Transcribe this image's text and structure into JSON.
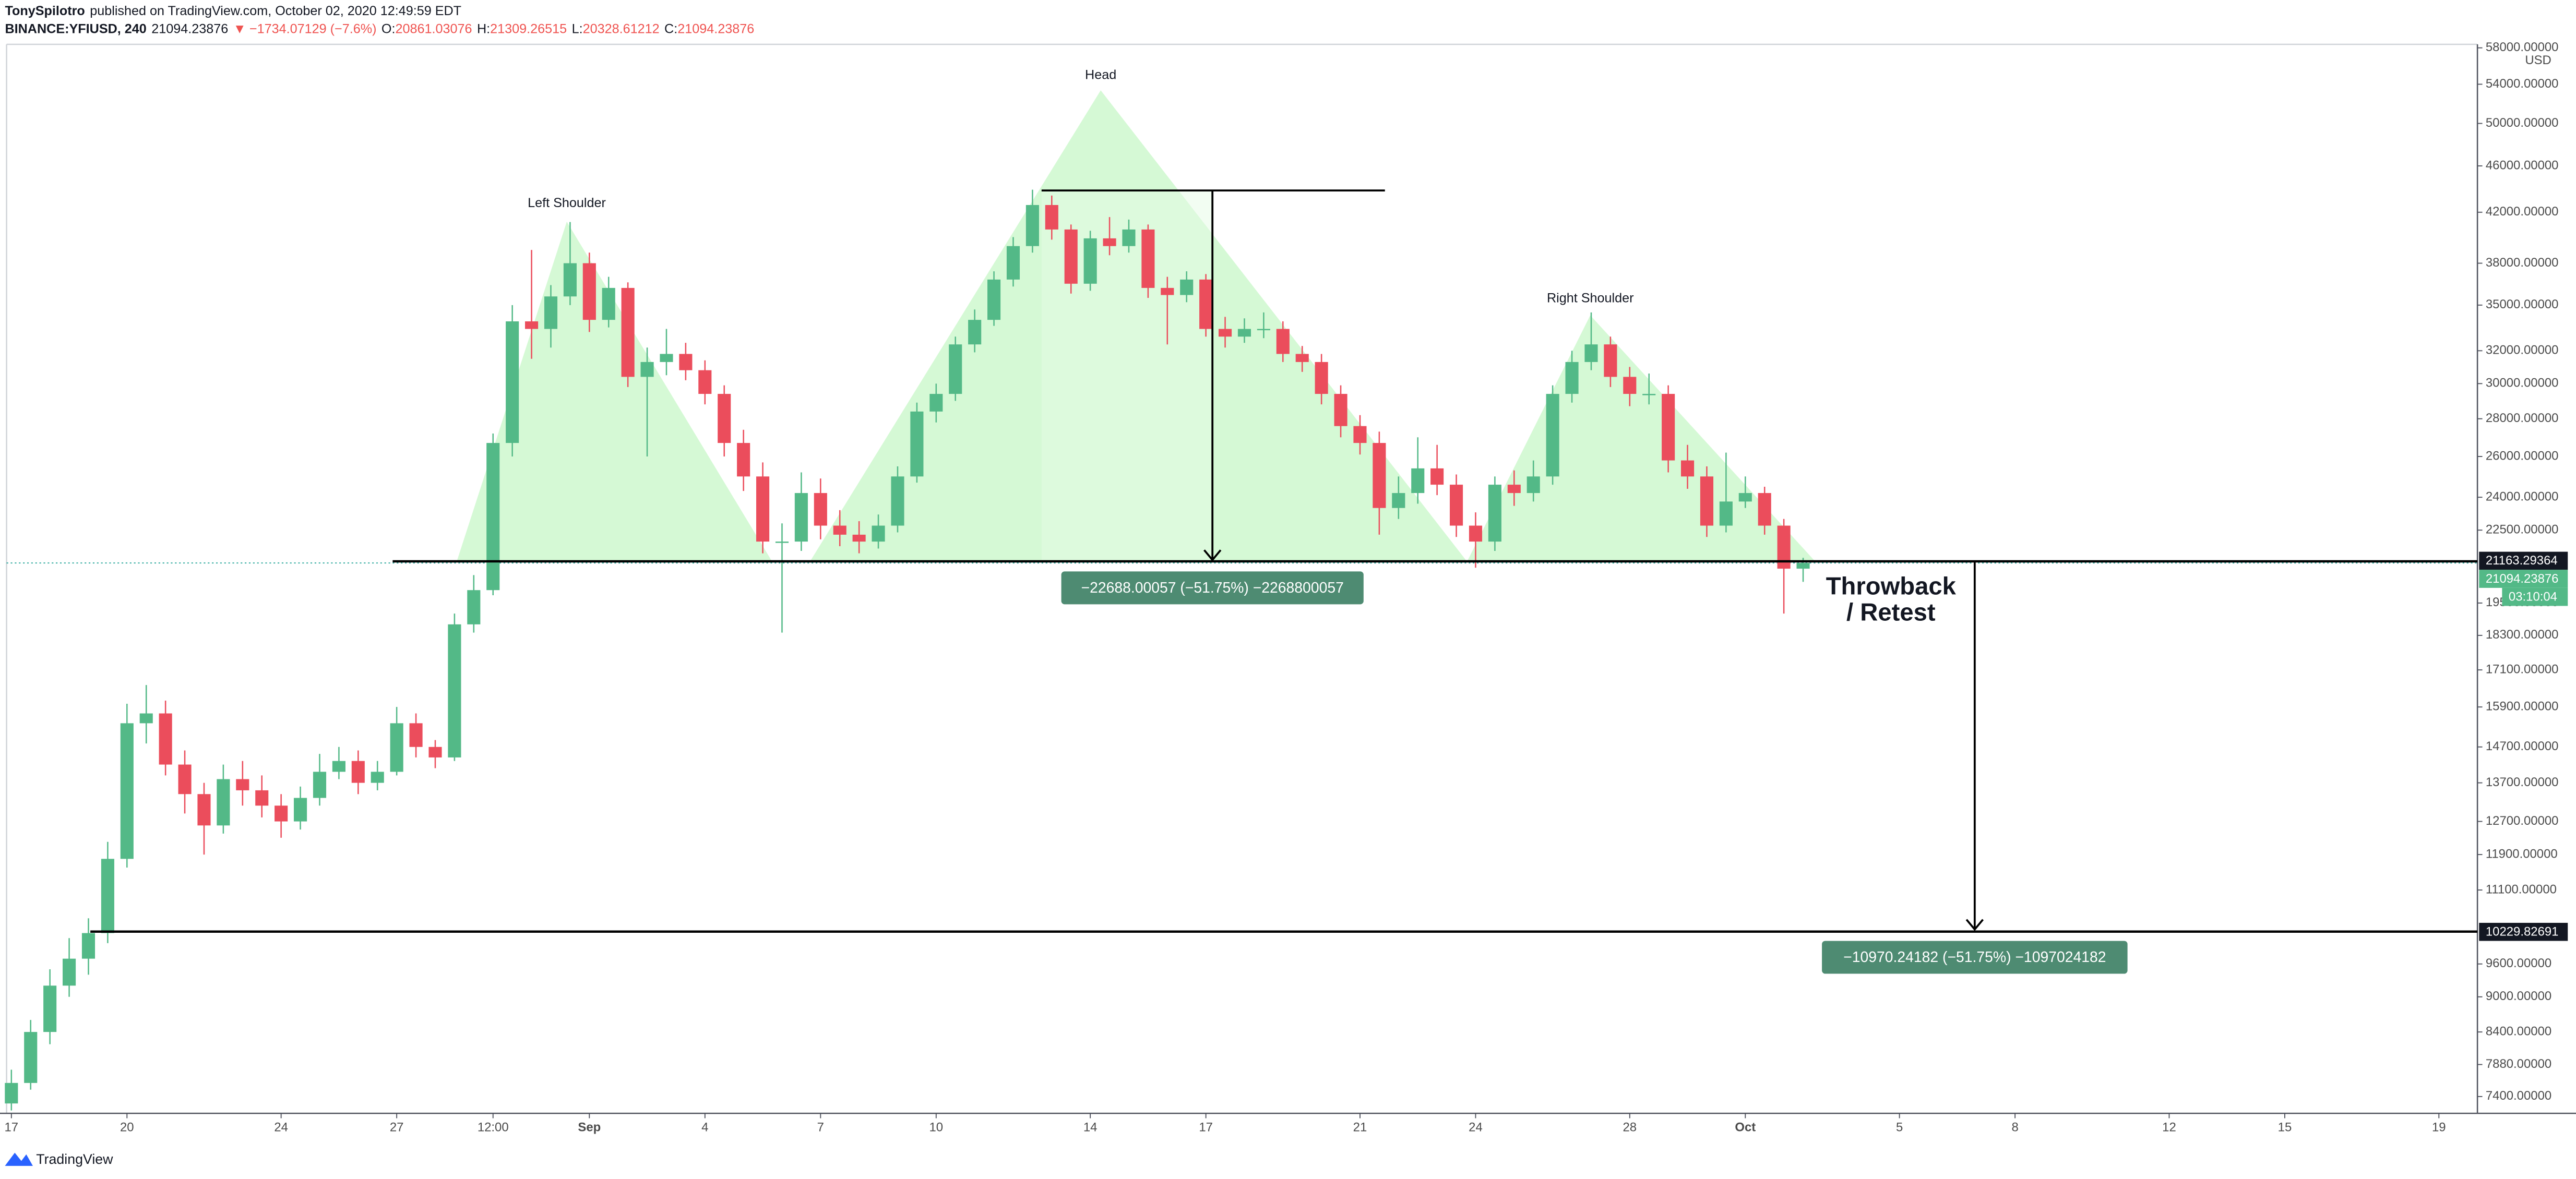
{
  "header": {
    "author": "TonySpilotro",
    "published": "published on TradingView.com, October 02, 2020 12:49:59 EDT",
    "symbol": "BINANCE:YFIUSD, 240",
    "arrow": "▼",
    "change": "−1734.07129 (−7.6%)",
    "o": "O:",
    "h": "H:",
    "l": "L:",
    "c": "C:"
  },
  "chart_data": {
    "type": "candlestick",
    "log_scale": true,
    "grid": false,
    "up_color": "#53b987",
    "down_color": "#eb4d5c",
    "y_axis_label": "USD",
    "x": [
      "2020-08-17 00:00",
      "2020-08-17 12:00",
      "2020-08-18 00:00",
      "2020-08-18 12:00",
      "2020-08-19 00:00",
      "2020-08-19 12:00",
      "2020-08-20 00:00",
      "2020-08-20 12:00",
      "2020-08-21 00:00",
      "2020-08-21 12:00",
      "2020-08-22 00:00",
      "2020-08-22 12:00",
      "2020-08-23 00:00",
      "2020-08-23 12:00",
      "2020-08-24 00:00",
      "2020-08-24 12:00",
      "2020-08-25 00:00",
      "2020-08-25 12:00",
      "2020-08-26 00:00",
      "2020-08-26 12:00",
      "2020-08-27 00:00",
      "2020-08-27 12:00",
      "2020-08-28 00:00",
      "2020-08-28 12:00",
      "2020-08-29 00:00",
      "2020-08-29 12:00",
      "2020-08-30 00:00",
      "2020-08-30 12:00",
      "2020-08-31 00:00",
      "2020-08-31 12:00",
      "2020-09-01 00:00",
      "2020-09-01 12:00",
      "2020-09-02 00:00",
      "2020-09-02 12:00",
      "2020-09-03 00:00",
      "2020-09-03 12:00",
      "2020-09-04 00:00",
      "2020-09-04 12:00",
      "2020-09-05 00:00",
      "2020-09-05 12:00",
      "2020-09-06 00:00",
      "2020-09-06 12:00",
      "2020-09-07 00:00",
      "2020-09-07 12:00",
      "2020-09-08 00:00",
      "2020-09-08 12:00",
      "2020-09-09 00:00",
      "2020-09-09 12:00",
      "2020-09-10 00:00",
      "2020-09-10 12:00",
      "2020-09-11 00:00",
      "2020-09-11 12:00",
      "2020-09-12 00:00",
      "2020-09-12 12:00",
      "2020-09-13 00:00",
      "2020-09-13 12:00",
      "2020-09-14 00:00",
      "2020-09-14 12:00",
      "2020-09-15 00:00",
      "2020-09-15 12:00",
      "2020-09-16 00:00",
      "2020-09-16 12:00",
      "2020-09-17 00:00",
      "2020-09-17 12:00",
      "2020-09-18 00:00",
      "2020-09-18 12:00",
      "2020-09-19 00:00",
      "2020-09-19 12:00",
      "2020-09-20 00:00",
      "2020-09-20 12:00",
      "2020-09-21 00:00",
      "2020-09-21 12:00",
      "2020-09-22 00:00",
      "2020-09-22 12:00",
      "2020-09-23 00:00",
      "2020-09-23 12:00",
      "2020-09-24 00:00",
      "2020-09-24 12:00",
      "2020-09-25 00:00",
      "2020-09-25 12:00",
      "2020-09-26 00:00",
      "2020-09-26 12:00",
      "2020-09-27 00:00",
      "2020-09-27 12:00",
      "2020-09-28 00:00",
      "2020-09-28 12:00",
      "2020-09-29 00:00",
      "2020-09-29 12:00",
      "2020-09-30 00:00",
      "2020-09-30 12:00",
      "2020-10-01 00:00",
      "2020-10-01 12:00",
      "2020-10-02 00:00",
      "2020-10-02 12:00"
    ],
    "open": [
      7300,
      7600,
      8400,
      9200,
      9700,
      10200,
      11800,
      15400,
      15700,
      14200,
      13400,
      12600,
      13800,
      13500,
      13100,
      12700,
      13300,
      14000,
      14300,
      13700,
      14000,
      15400,
      14700,
      14400,
      18700,
      20000,
      26700,
      33900,
      33400,
      35600,
      38000,
      34000,
      36200,
      30400,
      31300,
      31800,
      30800,
      29400,
      26700,
      25000,
      22000,
      22000,
      24200,
      22700,
      22300,
      22000,
      22700,
      25000,
      28400,
      29400,
      32400,
      34000,
      36800,
      39300,
      42600,
      40600,
      36500,
      39900,
      39300,
      40600,
      36200,
      35700,
      36800,
      33400,
      32900,
      33400,
      33400,
      31800,
      31300,
      29400,
      27600,
      26700,
      23500,
      24200,
      25400,
      24600,
      22700,
      22000,
      24600,
      24200,
      25000,
      29400,
      31300,
      32400,
      30400,
      29400,
      29400,
      25800,
      25000,
      22700,
      23800,
      24200,
      22700,
      20861.03076
    ],
    "high": [
      7800,
      8600,
      9500,
      10100,
      10500,
      12200,
      16000,
      16600,
      16100,
      14600,
      13700,
      14200,
      14300,
      13900,
      13400,
      13600,
      14500,
      14700,
      14600,
      14300,
      15900,
      15700,
      14900,
      19100,
      20600,
      27200,
      35000,
      39000,
      36400,
      41200,
      38800,
      37000,
      36600,
      32200,
      33400,
      32500,
      31400,
      29900,
      27400,
      25700,
      22800,
      25200,
      24900,
      23400,
      22900,
      23200,
      25500,
      28900,
      30000,
      32900,
      34700,
      37400,
      40000,
      43900,
      43400,
      41000,
      40500,
      41600,
      41400,
      41000,
      37000,
      37400,
      37200,
      34200,
      34100,
      34500,
      33900,
      32300,
      31800,
      29900,
      28200,
      27300,
      25000,
      27000,
      26600,
      25100,
      23300,
      25000,
      25300,
      25800,
      29900,
      32000,
      34500,
      32900,
      31000,
      30600,
      29900,
      26600,
      25500,
      26200,
      25000,
      24500,
      23000,
      21309.26515
    ],
    "low": [
      7200,
      7500,
      8200,
      9000,
      9400,
      10000,
      11600,
      14800,
      13900,
      12900,
      11900,
      12400,
      13100,
      12800,
      12300,
      12500,
      13100,
      13800,
      13400,
      13500,
      13900,
      14400,
      14100,
      14300,
      18400,
      19800,
      26000,
      31500,
      32200,
      35000,
      33200,
      33500,
      29800,
      26000,
      30500,
      30200,
      28800,
      26000,
      24300,
      21500,
      18400,
      21600,
      22100,
      21800,
      21500,
      21700,
      22400,
      24700,
      27800,
      29000,
      31900,
      33600,
      36300,
      38800,
      39800,
      35800,
      36000,
      38600,
      38800,
      35500,
      32400,
      35200,
      32900,
      32200,
      32500,
      32800,
      31300,
      30700,
      28800,
      27000,
      26100,
      22300,
      23000,
      23700,
      24100,
      22200,
      20900,
      21600,
      23600,
      23800,
      24600,
      28900,
      30800,
      29800,
      28700,
      28800,
      25200,
      24400,
      22200,
      22400,
      23500,
      22300,
      19100,
      20328.61212
    ],
    "close": [
      7600,
      8400,
      9200,
      9700,
      10200,
      11800,
      15400,
      15700,
      14200,
      13400,
      12600,
      13800,
      13500,
      13100,
      12700,
      13300,
      14000,
      14300,
      13700,
      14000,
      15400,
      14700,
      14400,
      18700,
      20000,
      26700,
      33900,
      33400,
      35600,
      38000,
      34000,
      36200,
      30400,
      31300,
      31800,
      30800,
      29400,
      26700,
      25000,
      22000,
      22000,
      24200,
      22700,
      22300,
      22000,
      22700,
      25000,
      28400,
      29400,
      32400,
      34000,
      36800,
      39300,
      42600,
      40600,
      36500,
      39900,
      39300,
      40600,
      36200,
      35700,
      36800,
      33400,
      32900,
      33400,
      33400,
      31800,
      31300,
      29400,
      27600,
      26700,
      23500,
      24200,
      25400,
      24600,
      22700,
      22000,
      24600,
      24200,
      25000,
      29400,
      31300,
      32400,
      30400,
      29400,
      29400,
      25800,
      25000,
      22700,
      23800,
      24200,
      22700,
      20861.03076,
      21094.23876
    ],
    "xlim": [
      "2020-08-16 21:00",
      "2020-10-20 00:00"
    ],
    "xticks": [
      {
        "value": "2020-08-17 00:00",
        "label": "17"
      },
      {
        "value": "2020-08-20 00:00",
        "label": "20"
      },
      {
        "value": "2020-08-24 00:00",
        "label": "24"
      },
      {
        "value": "2020-08-27 00:00",
        "label": "27"
      },
      {
        "value": "2020-08-29 12:00",
        "label": "12:00"
      },
      {
        "value": "2020-09-01 00:00",
        "label": "Sep"
      },
      {
        "value": "2020-09-04 00:00",
        "label": "4"
      },
      {
        "value": "2020-09-07 00:00",
        "label": "7"
      },
      {
        "value": "2020-09-10 00:00",
        "label": "10"
      },
      {
        "value": "2020-09-14 00:00",
        "label": "14"
      },
      {
        "value": "2020-09-17 00:00",
        "label": "17"
      },
      {
        "value": "2020-09-21 00:00",
        "label": "21"
      },
      {
        "value": "2020-09-24 00:00",
        "label": "24"
      },
      {
        "value": "2020-09-28 00:00",
        "label": "28"
      },
      {
        "value": "2020-10-01 00:00",
        "label": "Oct"
      },
      {
        "value": "2020-10-05 00:00",
        "label": "5"
      },
      {
        "value": "2020-10-08 00:00",
        "label": "8"
      },
      {
        "value": "2020-10-12 00:00",
        "label": "12"
      },
      {
        "value": "2020-10-15 00:00",
        "label": "15"
      },
      {
        "value": "2020-10-19 00:00",
        "label": "19"
      }
    ],
    "ylim": [
      7160,
      58400
    ],
    "yticks": [
      {
        "value": 58000,
        "label": "58000.00000"
      },
      {
        "value": 54000,
        "label": "54000.00000"
      },
      {
        "value": 50000,
        "label": "50000.00000"
      },
      {
        "value": 46000,
        "label": "46000.00000"
      },
      {
        "value": 42000,
        "label": "42000.00000"
      },
      {
        "value": 38000,
        "label": "38000.00000"
      },
      {
        "value": 35000,
        "label": "35000.00000"
      },
      {
        "value": 32000,
        "label": "32000.00000"
      },
      {
        "value": 30000,
        "label": "30000.00000"
      },
      {
        "value": 28000,
        "label": "28000.00000"
      },
      {
        "value": 26000,
        "label": "26000.00000"
      },
      {
        "value": 24000,
        "label": "24000.00000"
      },
      {
        "value": 22500,
        "label": "22500.00000"
      },
      {
        "value": 19500,
        "label": "19500.00000"
      },
      {
        "value": 18300,
        "label": "18300.00000"
      },
      {
        "value": 17100,
        "label": "17100.00000"
      },
      {
        "value": 15900,
        "label": "15900.00000"
      },
      {
        "value": 14700,
        "label": "14700.00000"
      },
      {
        "value": 13700,
        "label": "13700.00000"
      },
      {
        "value": 12700,
        "label": "12700.00000"
      },
      {
        "value": 11900,
        "label": "11900.00000"
      },
      {
        "value": 11100,
        "label": "11100.00000"
      },
      {
        "value": 9600,
        "label": "9600.00000"
      },
      {
        "value": 9000,
        "label": "9000.00000"
      },
      {
        "value": 8400,
        "label": "8400.00000"
      },
      {
        "value": 7880,
        "label": "7880.00000"
      },
      {
        "value": 7400,
        "label": "7400.00000"
      }
    ],
    "levels": [
      21163.29364,
      10229.82691
    ],
    "countdown": "03:10:04",
    "annotations": {
      "head": "Head",
      "left_shoulder": "Left Shoulder",
      "right_shoulder": "Right Shoulder",
      "throwback": [
        "Throwback",
        "/ Retest"
      ],
      "measures": [
        "−22688.00057 (−51.75%) −2268800057",
        "−10970.24182 (−51.75%) −1097024182"
      ]
    }
  },
  "footer": {
    "brand": "TradingView"
  }
}
